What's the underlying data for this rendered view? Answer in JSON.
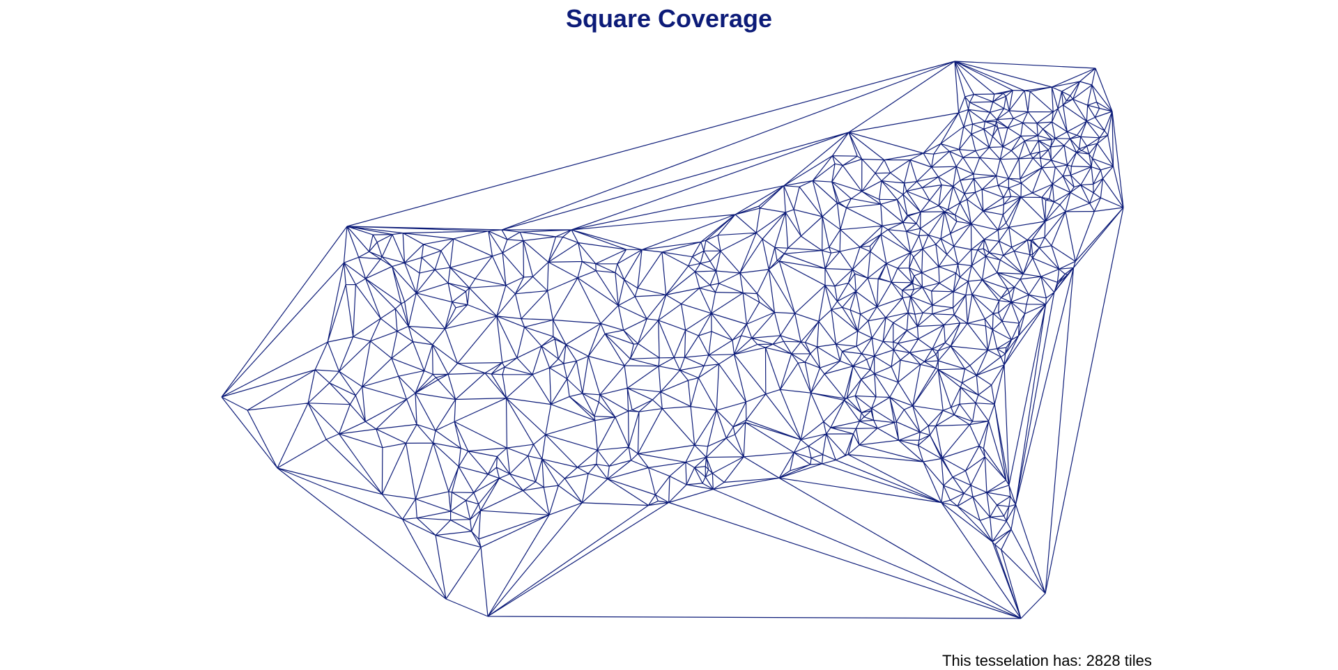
{
  "title": "Square Coverage",
  "caption": "This tesselation has: 2828 tiles",
  "colors": {
    "title": "#0c1b78",
    "mesh_stroke": "#0c1b78",
    "background": "#ffffff",
    "caption": "#000000"
  }
}
